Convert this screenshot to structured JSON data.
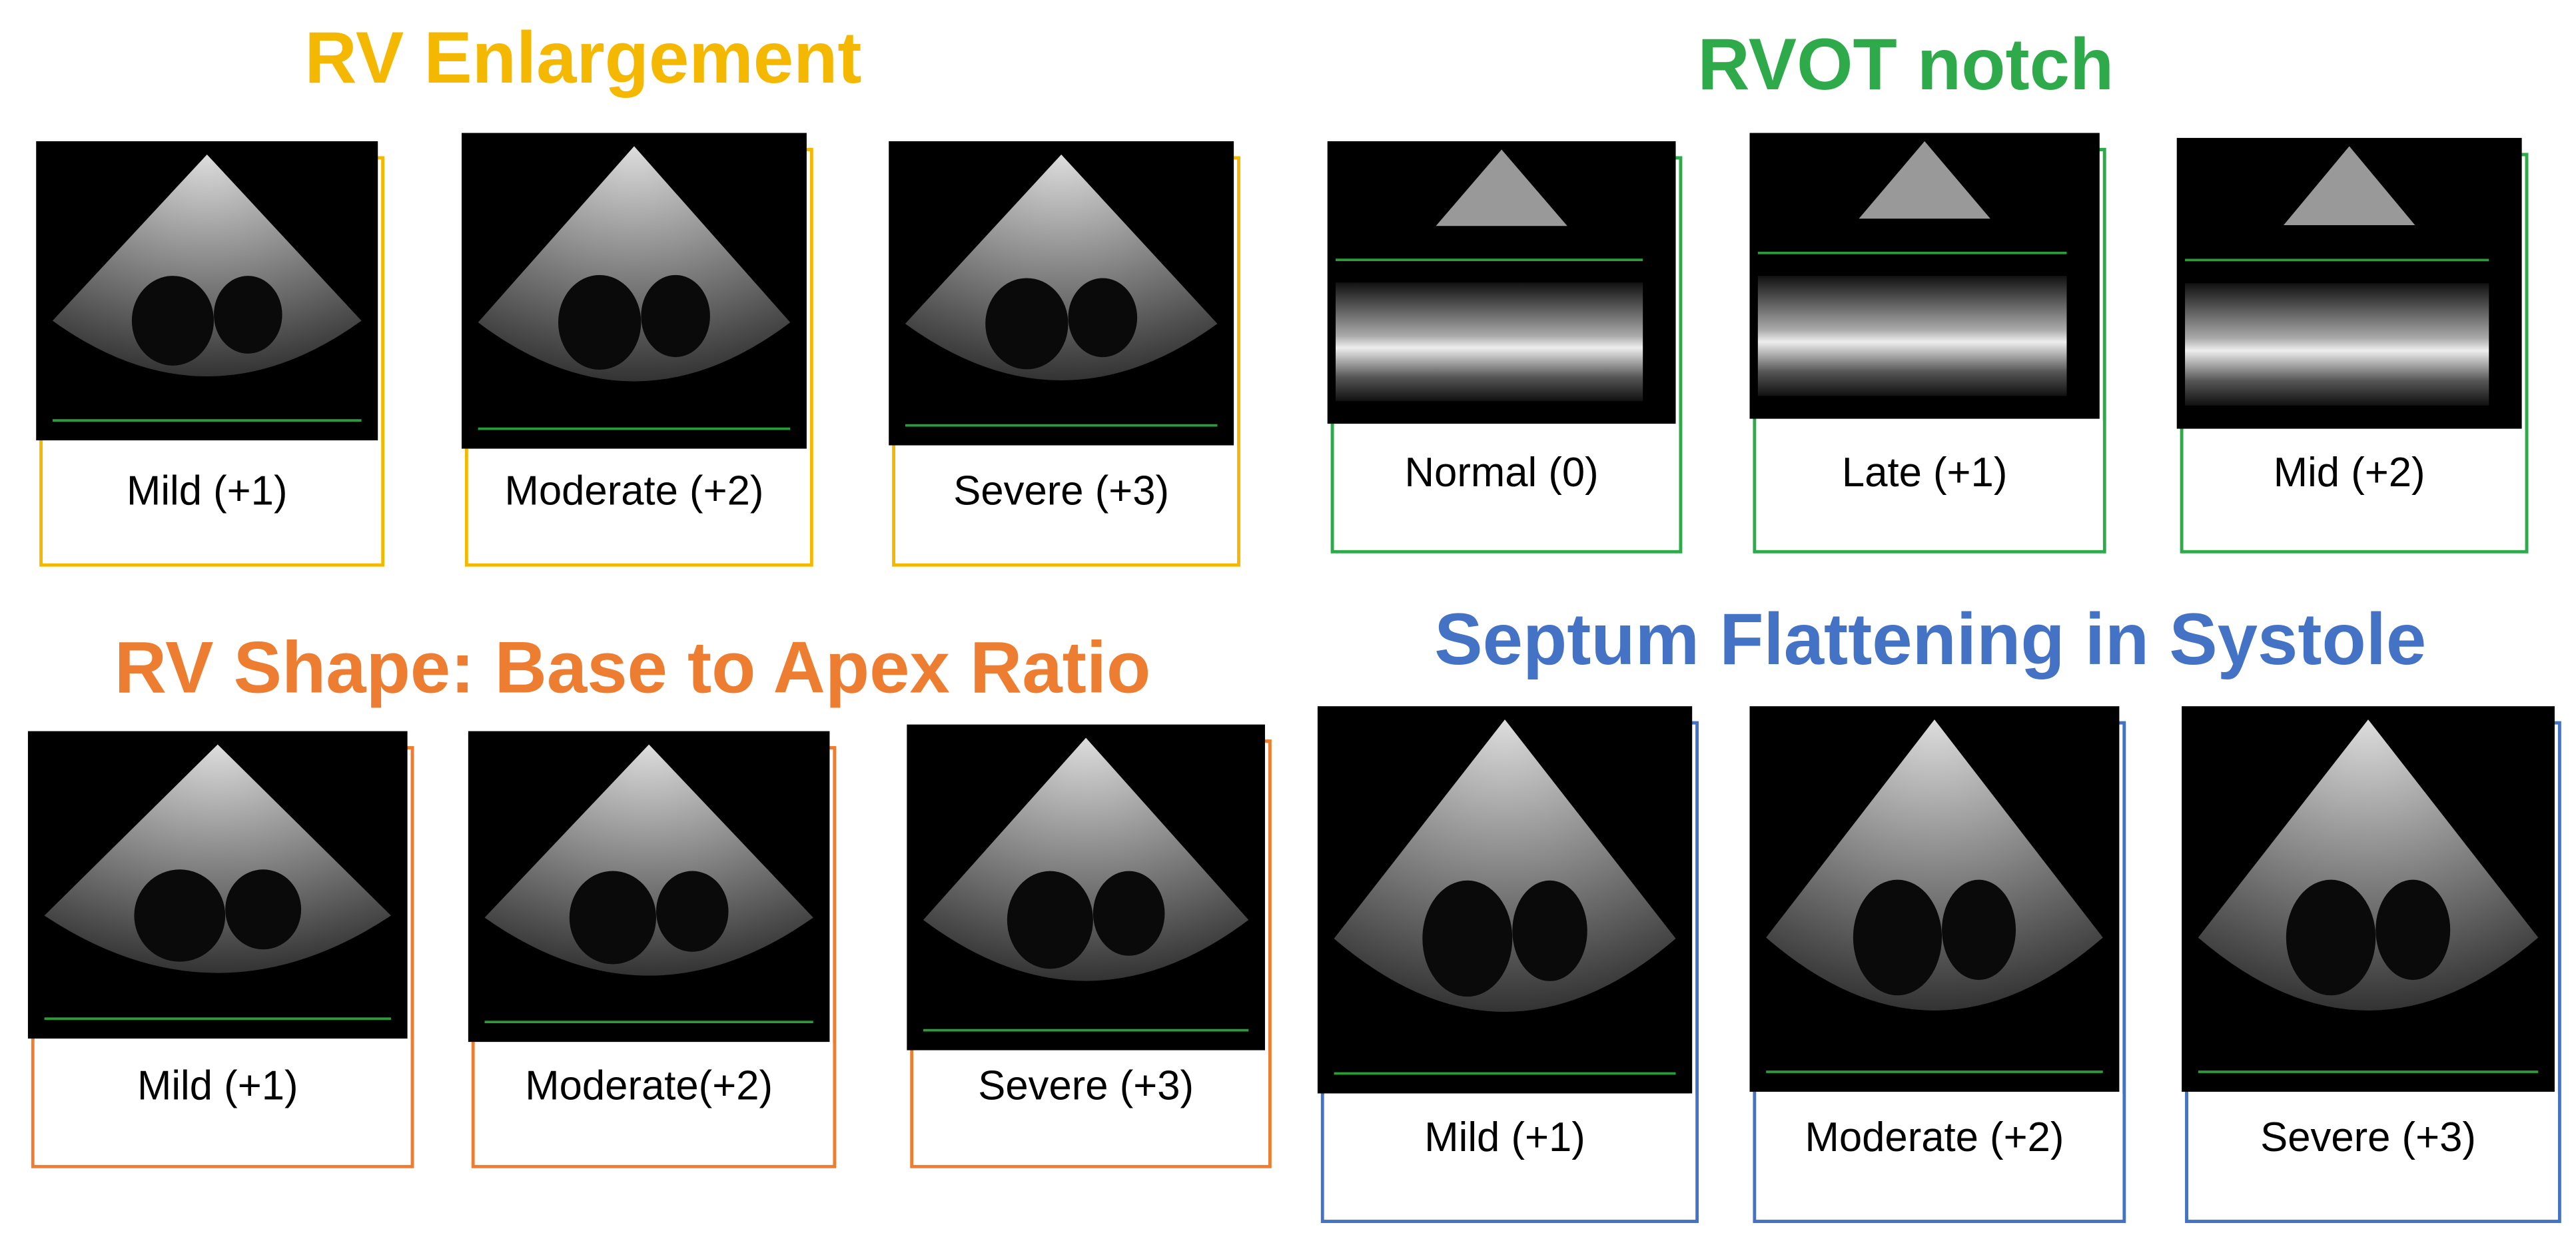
{
  "panels": [
    {
      "title": "RV Enlargement",
      "color": "#f5b800",
      "items": [
        "Mild (+1)",
        "Moderate (+2)",
        "Severe (+3)"
      ]
    },
    {
      "title": "RVOT notch",
      "color": "#2eaa4a",
      "items": [
        "Normal (0)",
        "Late (+1)",
        "Mid (+2)"
      ]
    },
    {
      "title": "RV Shape: Base to Apex Ratio",
      "color": "#ed7d31",
      "items": [
        "Mild (+1)",
        "Moderate(+2)",
        "Severe (+3)"
      ]
    },
    {
      "title": "Septum Flattening in Systole",
      "color": "#4472c4",
      "items": [
        "Mild (+1)",
        "Moderate (+2)",
        "Severe (+3)"
      ]
    }
  ]
}
